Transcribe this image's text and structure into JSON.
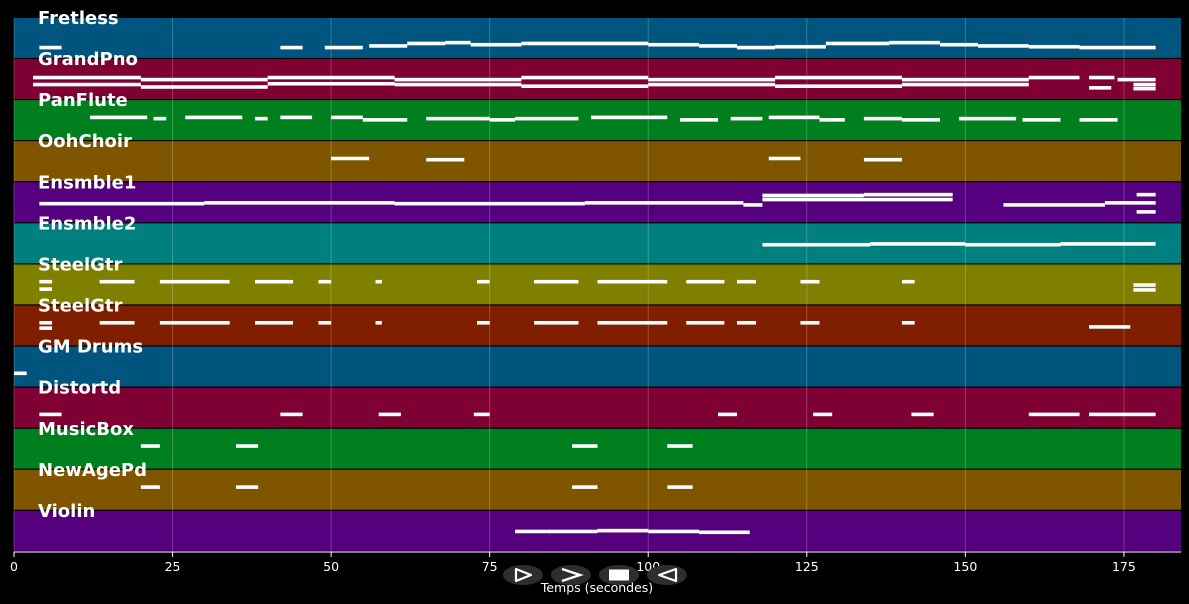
{
  "colors": {
    "background": "#000000",
    "note": "#ffffff",
    "gridline": "#ffffff",
    "control_bg": "#2e2e2e",
    "control_fg": "#ffffff"
  },
  "chart_data": {
    "type": "timeline",
    "xlabel": "Temps (secondes)",
    "xlim": [
      0,
      184
    ],
    "xticks": [
      0,
      25,
      50,
      75,
      100,
      125,
      150,
      175
    ],
    "grid": true,
    "tracks": [
      {
        "name": "Fretless",
        "color": "#00557f",
        "notes": [
          [
            4,
            7.5,
            0.72
          ],
          [
            42,
            45.5,
            0.72
          ],
          [
            49,
            55,
            0.72
          ],
          [
            56,
            62,
            0.68
          ],
          [
            62,
            68,
            0.62
          ],
          [
            68,
            72,
            0.6
          ],
          [
            72,
            80,
            0.65
          ],
          [
            80,
            92,
            0.62
          ],
          [
            92,
            100,
            0.62
          ],
          [
            100,
            108,
            0.65
          ],
          [
            108,
            114,
            0.68
          ],
          [
            114,
            120,
            0.72
          ],
          [
            120,
            128,
            0.7
          ],
          [
            128,
            138,
            0.62
          ],
          [
            138,
            146,
            0.6
          ],
          [
            146,
            152,
            0.65
          ],
          [
            152,
            160,
            0.68
          ],
          [
            160,
            168,
            0.7
          ],
          [
            168,
            180,
            0.72
          ]
        ]
      },
      {
        "name": "GrandPno",
        "color": "#7f0032",
        "notes": [
          [
            3,
            20,
            0.45
          ],
          [
            20,
            40,
            0.5
          ],
          [
            40,
            60,
            0.45
          ],
          [
            60,
            80,
            0.5
          ],
          [
            80,
            100,
            0.45
          ],
          [
            100,
            120,
            0.5
          ],
          [
            120,
            140,
            0.45
          ],
          [
            140,
            160,
            0.5
          ],
          [
            160,
            168,
            0.45
          ],
          [
            169.5,
            173.5,
            0.45
          ],
          [
            174,
            180,
            0.5
          ],
          [
            3,
            20,
            0.62
          ],
          [
            20,
            40,
            0.68
          ],
          [
            40,
            60,
            0.6
          ],
          [
            60,
            80,
            0.62
          ],
          [
            80,
            100,
            0.66
          ],
          [
            100,
            120,
            0.62
          ],
          [
            120,
            140,
            0.66
          ],
          [
            140,
            160,
            0.62
          ],
          [
            169.5,
            173,
            0.7
          ],
          [
            176.5,
            180,
            0.62
          ],
          [
            176.5,
            180,
            0.72
          ]
        ]
      },
      {
        "name": "PanFlute",
        "color": "#007f1f",
        "notes": [
          [
            12,
            21,
            0.42
          ],
          [
            22,
            24,
            0.45
          ],
          [
            27,
            36,
            0.42
          ],
          [
            38,
            40,
            0.45
          ],
          [
            42,
            47,
            0.42
          ],
          [
            50,
            55,
            0.42
          ],
          [
            55,
            62,
            0.48
          ],
          [
            65,
            75,
            0.45
          ],
          [
            75,
            79,
            0.48
          ],
          [
            79,
            89,
            0.45
          ],
          [
            91,
            103,
            0.42
          ],
          [
            105,
            111,
            0.48
          ],
          [
            113,
            118,
            0.45
          ],
          [
            119,
            127,
            0.42
          ],
          [
            127,
            131,
            0.48
          ],
          [
            134,
            140,
            0.45
          ],
          [
            140,
            146,
            0.48
          ],
          [
            149,
            158,
            0.45
          ],
          [
            159,
            165,
            0.48
          ],
          [
            168,
            174,
            0.48
          ]
        ]
      },
      {
        "name": "OohChoir",
        "color": "#7f5500",
        "notes": [
          [
            50,
            56,
            0.42
          ],
          [
            65,
            71,
            0.45
          ],
          [
            119,
            124,
            0.42
          ],
          [
            134,
            140,
            0.45
          ]
        ]
      },
      {
        "name": "Ensmble1",
        "color": "#55007f",
        "notes": [
          [
            4,
            30,
            0.52
          ],
          [
            30,
            60,
            0.5
          ],
          [
            60,
            90,
            0.52
          ],
          [
            90,
            115,
            0.5
          ],
          [
            115,
            118,
            0.55
          ],
          [
            118,
            134,
            0.32
          ],
          [
            134,
            148,
            0.3
          ],
          [
            118,
            134,
            0.42
          ],
          [
            134,
            148,
            0.42
          ],
          [
            156,
            172,
            0.55
          ],
          [
            172,
            180,
            0.5
          ],
          [
            177,
            180,
            0.3
          ],
          [
            177,
            180,
            0.72
          ]
        ]
      },
      {
        "name": "Ensmble2",
        "color": "#007f7f",
        "notes": [
          [
            118,
            135,
            0.52
          ],
          [
            135,
            150,
            0.5
          ],
          [
            150,
            165,
            0.52
          ],
          [
            165,
            180,
            0.5
          ]
        ]
      },
      {
        "name": "SteelGtr",
        "color": "#7f7f00",
        "notes": [
          [
            4,
            6,
            0.42
          ],
          [
            4,
            6,
            0.6
          ],
          [
            13.5,
            19,
            0.42
          ],
          [
            23,
            34,
            0.42
          ],
          [
            38,
            44,
            0.42
          ],
          [
            48,
            50,
            0.42
          ],
          [
            57,
            58,
            0.42
          ],
          [
            73,
            75,
            0.42
          ],
          [
            82,
            89,
            0.42
          ],
          [
            92,
            103,
            0.42
          ],
          [
            106,
            112,
            0.42
          ],
          [
            114,
            117,
            0.42
          ],
          [
            124,
            127,
            0.42
          ],
          [
            140,
            142,
            0.42
          ],
          [
            176.5,
            180,
            0.5
          ],
          [
            176.5,
            180,
            0.62
          ]
        ]
      },
      {
        "name": "SteelGtr",
        "color": "#7f1f00",
        "notes": [
          [
            4,
            6,
            0.42
          ],
          [
            4,
            6,
            0.55
          ],
          [
            13.5,
            19,
            0.42
          ],
          [
            23,
            34,
            0.42
          ],
          [
            38,
            44,
            0.42
          ],
          [
            48,
            50,
            0.42
          ],
          [
            57,
            58,
            0.42
          ],
          [
            73,
            75,
            0.42
          ],
          [
            82,
            89,
            0.42
          ],
          [
            92,
            103,
            0.42
          ],
          [
            106,
            112,
            0.42
          ],
          [
            114,
            117,
            0.42
          ],
          [
            124,
            127,
            0.42
          ],
          [
            140,
            142,
            0.42
          ],
          [
            169.5,
            176,
            0.52
          ]
        ]
      },
      {
        "name": "GM Drums",
        "color": "#00557f",
        "notes": [
          [
            0,
            2,
            0.65
          ]
        ]
      },
      {
        "name": "Distortd",
        "color": "#7f0032",
        "notes": [
          [
            4,
            7.5,
            0.65
          ],
          [
            42,
            45.5,
            0.65
          ],
          [
            57.5,
            61,
            0.65
          ],
          [
            72.5,
            75,
            0.65
          ],
          [
            111,
            114,
            0.65
          ],
          [
            126,
            129,
            0.65
          ],
          [
            141.5,
            145,
            0.65
          ],
          [
            160,
            168,
            0.65
          ],
          [
            169.5,
            180,
            0.65
          ]
        ]
      },
      {
        "name": "MusicBox",
        "color": "#007f1f",
        "notes": [
          [
            20,
            23,
            0.42
          ],
          [
            35,
            38.5,
            0.42
          ],
          [
            88,
            92,
            0.42
          ],
          [
            103,
            107,
            0.42
          ]
        ]
      },
      {
        "name": "NewAgePd",
        "color": "#7f5500",
        "notes": [
          [
            20,
            23,
            0.42
          ],
          [
            35,
            38.5,
            0.42
          ],
          [
            88,
            92,
            0.42
          ],
          [
            103,
            107,
            0.42
          ]
        ]
      },
      {
        "name": "Violin",
        "color": "#55007f",
        "notes": [
          [
            79,
            84,
            0.5
          ],
          [
            84,
            92,
            0.5
          ],
          [
            92,
            100,
            0.48
          ],
          [
            100,
            108,
            0.5
          ],
          [
            108,
            116,
            0.52
          ]
        ]
      }
    ]
  },
  "controls": {
    "play_icon": "play-icon",
    "forward_icon": "forward-icon",
    "stop_icon": "stop-icon",
    "rewind_icon": "rewind-icon"
  }
}
